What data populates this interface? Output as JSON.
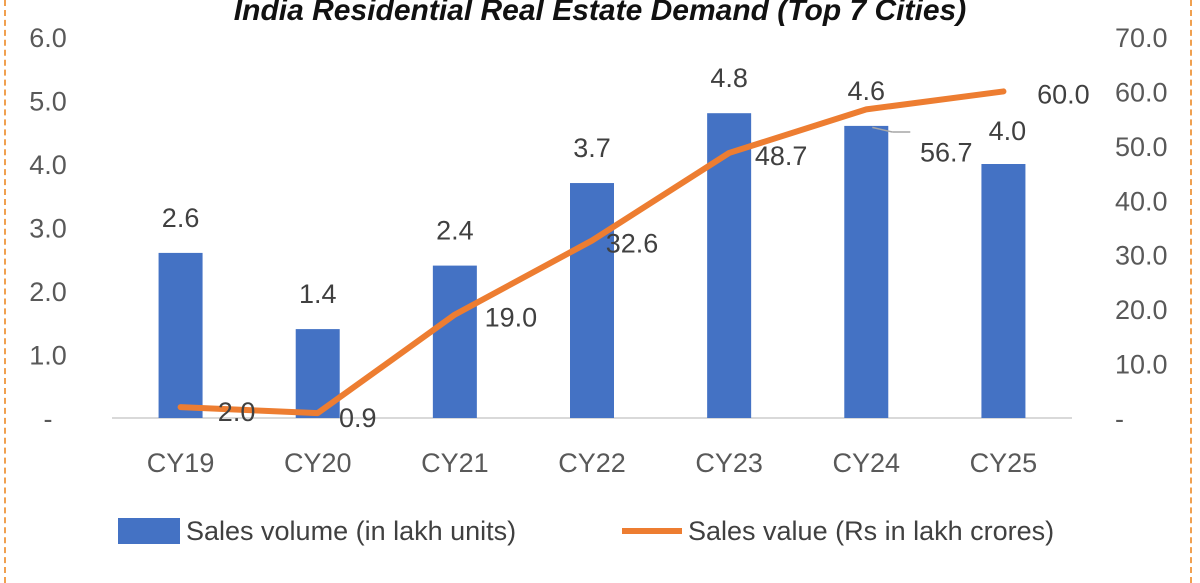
{
  "chart_data": {
    "type": "bar",
    "title": "India Residential Real Estate Demand (Top 7 Cities)",
    "categories": [
      "CY19",
      "CY20",
      "CY21",
      "CY22",
      "CY23",
      "CY24",
      "CY25"
    ],
    "series": [
      {
        "name": "Sales volume (in lakh units)",
        "type": "bar",
        "axis": "left",
        "values": [
          2.6,
          1.4,
          2.4,
          3.7,
          4.8,
          4.6,
          4.0
        ],
        "labels": [
          "2.6",
          "1.4",
          "2.4",
          "3.7",
          "4.8",
          "4.6",
          "4.0"
        ],
        "color": "#4472C4"
      },
      {
        "name": "Sales value (Rs in lakh crores)",
        "type": "line",
        "axis": "right",
        "values": [
          2.0,
          0.9,
          19.0,
          32.6,
          48.7,
          56.7,
          60.0
        ],
        "labels": [
          "2.0",
          "0.9",
          "19.0",
          "32.6",
          "48.7",
          "56.7",
          "60.0"
        ],
        "color": "#ED7D31"
      }
    ],
    "y_left": {
      "range": [
        0,
        6
      ],
      "ticks": [
        "-",
        "1.0",
        "2.0",
        "3.0",
        "4.0",
        "5.0",
        "6.0"
      ]
    },
    "y_right": {
      "range": [
        0,
        70
      ],
      "ticks": [
        "-",
        "10.0",
        "20.0",
        "30.0",
        "40.0",
        "50.0",
        "60.0",
        "70.0"
      ]
    },
    "legend_position": "bottom",
    "grid": false
  }
}
